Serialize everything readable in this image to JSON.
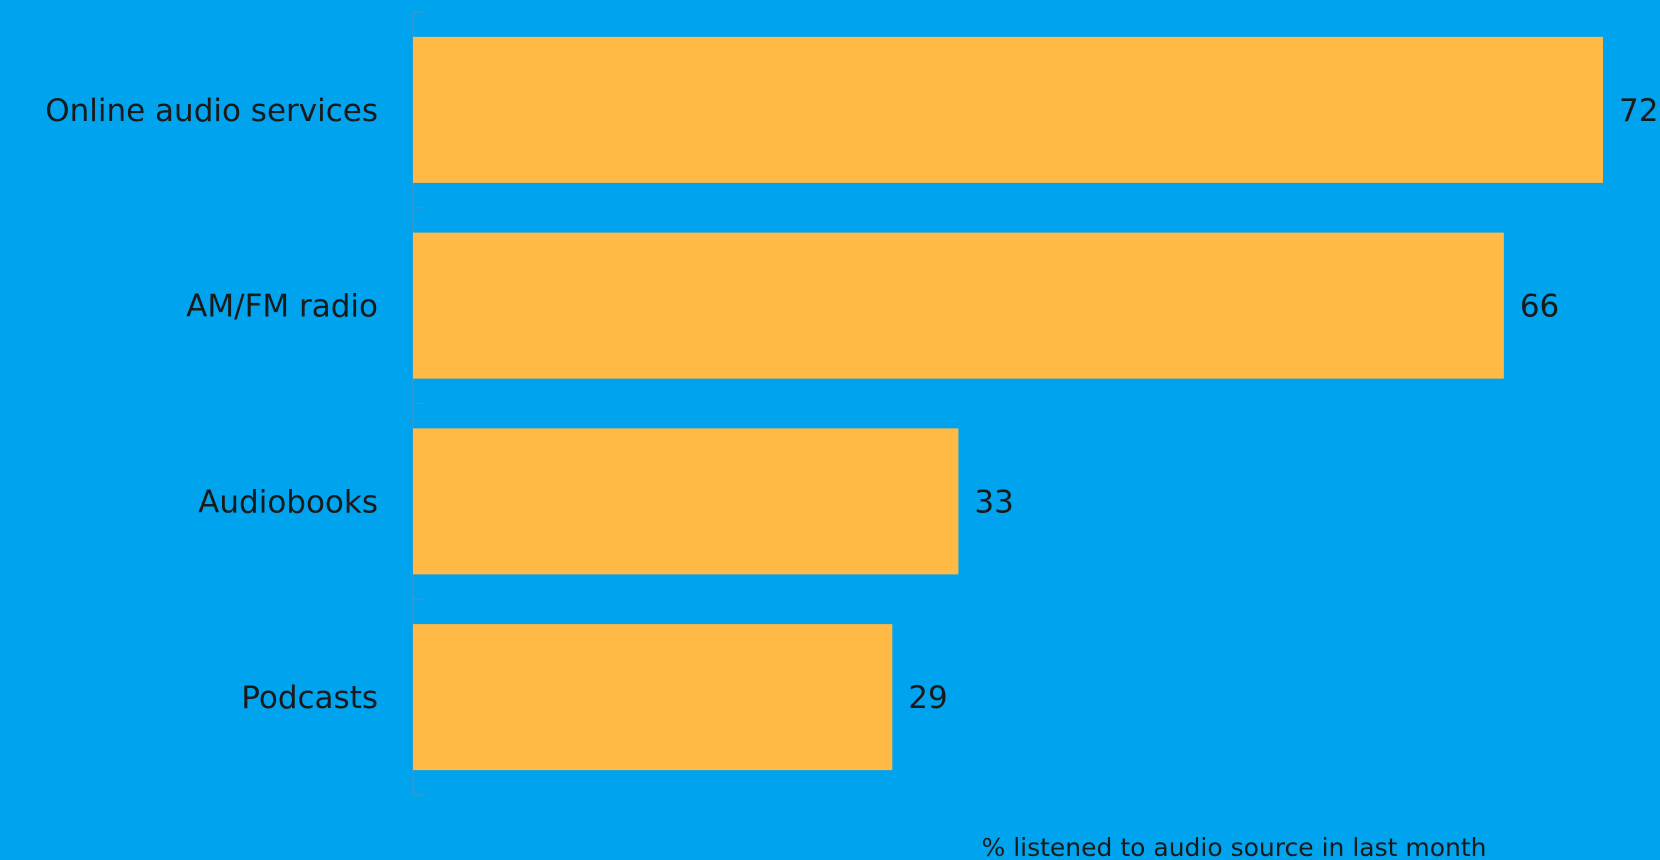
{
  "chart_data": {
    "type": "bar",
    "orientation": "horizontal",
    "categories": [
      "Online audio services",
      "AM/FM radio",
      "Audiobooks",
      "Podcasts"
    ],
    "values": [
      72,
      66,
      33,
      29
    ],
    "data_labels": [
      "72",
      "66",
      "33",
      "29"
    ],
    "xlabel": "% listened to audio source in last month",
    "xlim": [
      0,
      72
    ],
    "grid": false,
    "legend": "none",
    "colors": {
      "background": "#00a3ee",
      "bar": "#ffba45",
      "text": "#1a1a1a",
      "axis": "#5a8fb3"
    }
  }
}
